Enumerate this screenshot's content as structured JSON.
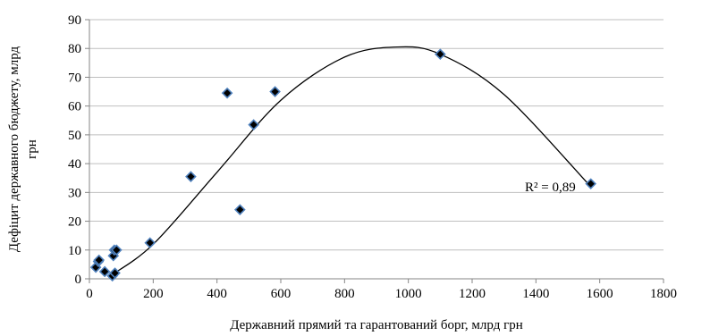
{
  "chart_data": {
    "type": "scatter",
    "title": "",
    "xlabel": "Державний прямий та гарантований борг, млрд грн",
    "ylabel_line1": "Дефіцит державного бюджету, млрд",
    "ylabel_line2": "грн",
    "xlim": [
      0,
      1800
    ],
    "ylim": [
      0,
      90
    ],
    "x_ticks": [
      0,
      200,
      400,
      600,
      800,
      1000,
      1200,
      1400,
      1600,
      1800
    ],
    "y_ticks": [
      0,
      10,
      20,
      30,
      40,
      50,
      60,
      70,
      80,
      90
    ],
    "grid": "horizontal",
    "marker": "diamond",
    "marker_fill": "#000000",
    "marker_edge": "#4f81bd",
    "series": [
      {
        "points": [
          [
            20,
            4
          ],
          [
            28,
            6
          ],
          [
            30,
            6.5
          ],
          [
            48,
            2.5
          ],
          [
            72,
            1
          ],
          [
            75,
            8
          ],
          [
            78,
            10
          ],
          [
            80,
            2
          ],
          [
            85,
            10
          ],
          [
            190,
            12.5
          ],
          [
            318,
            35.5
          ],
          [
            432,
            64.5
          ],
          [
            472,
            24
          ],
          [
            515,
            53.5
          ],
          [
            582,
            65
          ],
          [
            1100,
            78
          ],
          [
            1572,
            33
          ]
        ]
      }
    ],
    "trendline": {
      "type": "polynomial",
      "curve": [
        [
          65,
          1
        ],
        [
          200,
          12
        ],
        [
          400,
          37
        ],
        [
          600,
          62
        ],
        [
          800,
          77
        ],
        [
          965,
          80.5
        ],
        [
          1100,
          78
        ],
        [
          1300,
          64
        ],
        [
          1572,
          32
        ]
      ],
      "annotation": "R² = 0,89"
    }
  }
}
